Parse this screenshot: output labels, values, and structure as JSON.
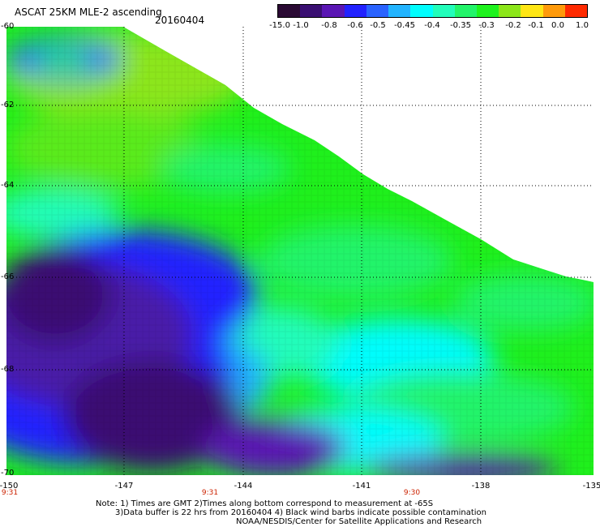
{
  "header": {
    "title": "ASCAT 25KM MLE-2 ascending",
    "date": "20160404"
  },
  "colorbar": {
    "labels": [
      "-15.0",
      "-1.0",
      "-0.8",
      "-0.6",
      "-0.5",
      "-0.45",
      "-0.4",
      "-0.35",
      "-0.3",
      "-0.2",
      "-0.1",
      "0.0",
      "1.0"
    ],
    "colors": [
      "#2a0a33",
      "#3a0f72",
      "#5a16b4",
      "#2222ff",
      "#2a63ff",
      "#22b4ff",
      "#00fdfd",
      "#22fdba",
      "#22f46a",
      "#1ef31e",
      "#8ce61a",
      "#ffe614",
      "#ff9a0a",
      "#ff2a00"
    ]
  },
  "map": {
    "lat_labels": [
      "-60",
      "-62",
      "-64",
      "-66",
      "-68",
      "-70"
    ],
    "lon_labels": [
      "-150",
      "-147",
      "-144",
      "-141",
      "-138",
      "-135"
    ],
    "time_labels": [
      "9:31",
      "9:31",
      "9:30"
    ]
  },
  "notes": {
    "line1": "Note: 1) Times are GMT 2)Times along bottom correspond to measurement at -65S",
    "line2": "3)Data buffer is 22 hrs from 20160404 4) Black wind barbs indicate possible contamination",
    "line3": "NOAA/NESDIS/Center for Satellite Applications and Research"
  }
}
